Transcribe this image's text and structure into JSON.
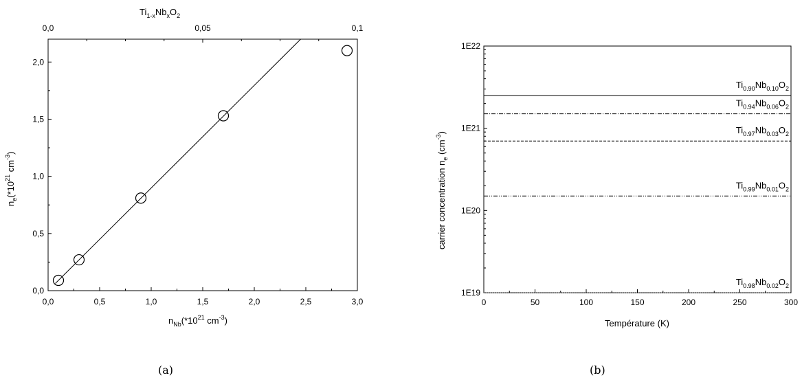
{
  "chart_data": [
    {
      "id": "a",
      "type": "scatter",
      "caption": "(a)",
      "xlabel": {
        "main": "n",
        "sub": "Nb",
        "rest": "(*10",
        "sup": "21",
        "unit": " cm",
        "unit_sup": "-3",
        "close": ")"
      },
      "ylabel": {
        "main": "n",
        "sub": "e",
        "rest": "(*10",
        "sup": "21",
        "unit": " cm",
        "unit_sup": "-3",
        "close": ")"
      },
      "top_axis_label": {
        "parts": [
          "Ti",
          "1-x",
          "Nb",
          "x",
          "O",
          "2"
        ]
      },
      "xlim": [
        0,
        3.0
      ],
      "ylim": [
        0,
        2.2
      ],
      "x_ticks": [
        0,
        0.5,
        1.0,
        1.5,
        2.0,
        2.5,
        3.0
      ],
      "x_tick_labels": [
        "0,0",
        "0,5",
        "1,0",
        "1,5",
        "2,0",
        "2,5",
        "3,0"
      ],
      "y_ticks": [
        0,
        0.5,
        1.0,
        1.5,
        2.0
      ],
      "y_tick_labels": [
        "0,0",
        "0,5",
        "1,0",
        "1,5",
        "2,0"
      ],
      "top_xlim": [
        0,
        0.1
      ],
      "top_ticks": [
        0,
        0.05,
        0.1
      ],
      "top_tick_labels": [
        "0,0",
        "0,05",
        "0,1"
      ],
      "points": [
        {
          "x": 0.1,
          "y": 0.09
        },
        {
          "x": 0.3,
          "y": 0.27
        },
        {
          "x": 0.9,
          "y": 0.81
        },
        {
          "x": 1.7,
          "y": 1.53
        },
        {
          "x": 2.9,
          "y": 2.1
        }
      ],
      "fit_line": {
        "x": [
          0.07,
          2.45
        ],
        "y": [
          0.063,
          2.2
        ]
      }
    },
    {
      "id": "b",
      "type": "line",
      "caption": "(b)",
      "xlabel": "Température (K)",
      "ylabel": {
        "main": "carrier concentration n",
        "sub": "e",
        "rest": " (cm",
        "sup": "-3",
        "close": ")"
      },
      "xlim": [
        0,
        300
      ],
      "ylim": [
        1e+19,
        1e+22
      ],
      "yscale": "log",
      "x_ticks": [
        0,
        50,
        100,
        150,
        200,
        250,
        300
      ],
      "x_tick_labels": [
        "0",
        "50",
        "100",
        "150",
        "200",
        "250",
        "300"
      ],
      "y_ticks": [
        1e+19,
        1e+20,
        1e+21,
        1e+22
      ],
      "y_tick_labels": [
        "1E19",
        "1E20",
        "1E21",
        "1E22"
      ],
      "series": [
        {
          "y": 2.5e+21,
          "style": "solid",
          "label": [
            "Ti",
            "0.90",
            "Nb",
            "0.10",
            "O",
            "2"
          ]
        },
        {
          "y": 1.5e+21,
          "style": "dashdot",
          "label": [
            "Ti",
            "0.94",
            "Nb",
            "0.06",
            "O",
            "2"
          ]
        },
        {
          "y": 7e+20,
          "style": "dashed",
          "label": [
            "Ti",
            "0.97",
            "Nb",
            "0.03",
            "O",
            "2"
          ]
        },
        {
          "y": 1.5e+20,
          "style": "dashdotdot",
          "label": [
            "Ti",
            "0.99",
            "Nb",
            "0.01",
            "O",
            "2"
          ]
        },
        {
          "y": 1e+19,
          "style": "dotted",
          "label": [
            "Ti",
            "0.98",
            "Nb",
            "0.02",
            "O",
            "2"
          ]
        }
      ]
    }
  ]
}
